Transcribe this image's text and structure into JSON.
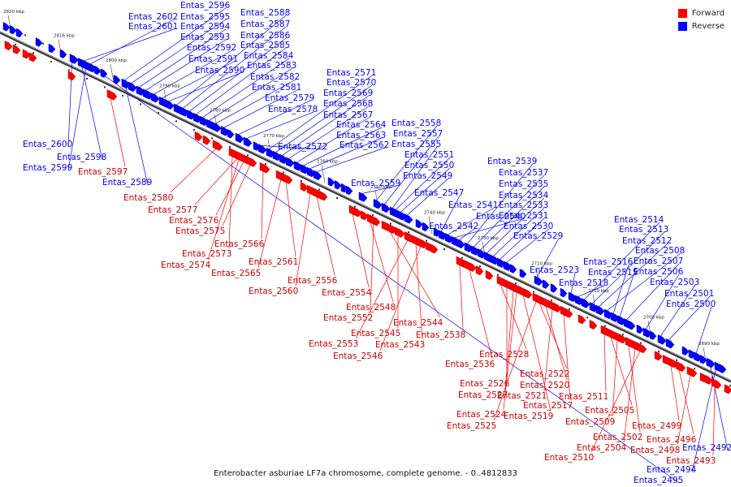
{
  "legend": {
    "forward_label": "Forward",
    "reverse_label": "Reverse",
    "forward_color": "#ff0000",
    "reverse_color": "#0000ff"
  },
  "caption": "Enterobacter asburiae LF7a chromosome, complete genome. - 0..4812833",
  "ruler_labels": [
    "2820 kbp",
    "2816 kbp",
    "2800 kbp",
    "2790 kbp",
    "2780 kbp",
    "2770 kbp",
    "2760 kbp",
    "2750 kbp",
    "2740 kbp",
    "2730 kbp",
    "2720 kbp",
    "2710 kbp",
    "2700 kbp",
    "2690 kbp"
  ],
  "reverse_genes": [
    "Entas_2602",
    "Entas_2601",
    "Entas_2596",
    "Entas_2595",
    "Entas_2594",
    "Entas_2593",
    "Entas_2592",
    "Entas_2591",
    "Entas_2590",
    "Entas_2588",
    "Entas_2587",
    "Entas_2586",
    "Entas_2585",
    "Entas_2584",
    "Entas_2583",
    "Entas_2582",
    "Entas_2581",
    "Entas_2579",
    "Entas_2578",
    "Entas_2600",
    "Entas_2598",
    "Entas_2599",
    "Entas_2589",
    "Entas_2572",
    "Entas_2571",
    "Entas_2570",
    "Entas_2569",
    "Entas_2568",
    "Entas_2567",
    "Entas_2564",
    "Entas_2563",
    "Entas_2562",
    "Entas_2559",
    "Entas_2558",
    "Entas_2557",
    "Entas_2555",
    "Entas_2551",
    "Entas_2550",
    "Entas_2549",
    "Entas_2547",
    "Entas_2541",
    "Entas_2540",
    "Entas_2542",
    "Entas_2539",
    "Entas_2537",
    "Entas_2535",
    "Entas_2534",
    "Entas_2533",
    "Entas_2531",
    "Entas_2530",
    "Entas_2529",
    "Entas_2523",
    "Entas_2518",
    "Entas_2514",
    "Entas_2513",
    "Entas_2512",
    "Entas_2508",
    "Entas_2516",
    "Entas_2515",
    "Entas_2507",
    "Entas_2506",
    "Entas_2503",
    "Entas_2501",
    "Entas_2500",
    "Entas_2492",
    "Entas_2494",
    "Entas_2495"
  ],
  "forward_genes": [
    "Entas_2597",
    "Entas_2580",
    "Entas_2577",
    "Entas_2576",
    "Entas_2575",
    "Entas_2566",
    "Entas_2573",
    "Entas_2574",
    "Entas_2565",
    "Entas_2561",
    "Entas_2560",
    "Entas_2556",
    "Entas_2554",
    "Entas_2548",
    "Entas_2552",
    "Entas_2544",
    "Entas_2545",
    "Entas_2553",
    "Entas_2543",
    "Entas_2546",
    "Entas_2538",
    "Entas_2536",
    "Entas_2528",
    "Entas_2526",
    "Entas_2527",
    "Entas_2522",
    "Entas_2520",
    "Entas_2521",
    "Entas_2517",
    "Entas_2524",
    "Entas_2519",
    "Entas_2525",
    "Entas_2511",
    "Entas_2505",
    "Entas_2509",
    "Entas_2502",
    "Entas_2504",
    "Entas_2510",
    "Entas_2499",
    "Entas_2496",
    "Entas_2498",
    "Entas_2493"
  ]
}
